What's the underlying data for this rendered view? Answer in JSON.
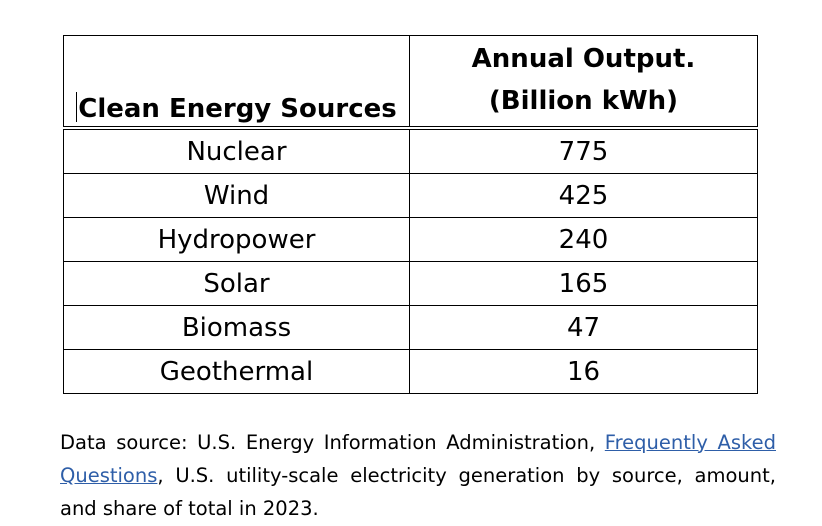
{
  "table": {
    "headers": {
      "source": "Clean Energy Sources",
      "output_line1": "Annual Output.",
      "output_line2": "(Billion kWh)"
    },
    "rows": [
      {
        "source": "Nuclear",
        "output": "775"
      },
      {
        "source": "Wind",
        "output": "425"
      },
      {
        "source": "Hydropower",
        "output": "240"
      },
      {
        "source": "Solar",
        "output": "165"
      },
      {
        "source": "Biomass",
        "output": "47"
      },
      {
        "source": "Geothermal",
        "output": "16"
      }
    ]
  },
  "note": {
    "prefix": "Data source: U.S. Energy Information Administration, ",
    "link_text": "Frequently Asked Questions",
    "suffix": ", U.S. utility-scale electricity generation by source, amount, and share of total in 2023."
  },
  "colors": {
    "link": "#2e5ea8"
  }
}
